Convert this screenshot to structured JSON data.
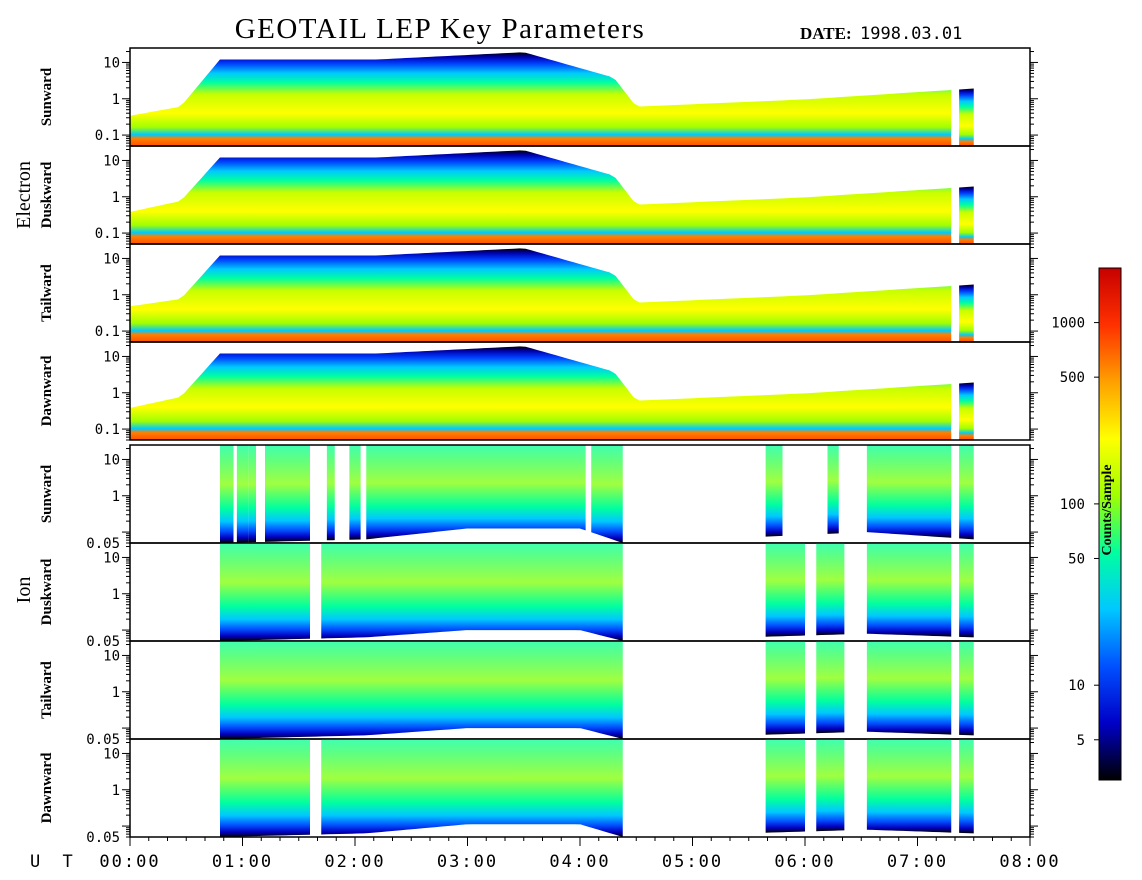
{
  "title": "GEOTAIL LEP Key Parameters",
  "date_label": "DATE:",
  "date_value": "1998.03.01",
  "time_axis_label": "U T",
  "groups": [
    "Electron",
    "Ion"
  ],
  "colorbar_label": "Counts/Sample",
  "chart_data": {
    "type": "heatmap",
    "title": "GEOTAIL LEP Key Parameters",
    "x_ticks": [
      "00:00",
      "01:00",
      "02:00",
      "03:00",
      "04:00",
      "05:00",
      "06:00",
      "07:00",
      "08:00"
    ],
    "x_range_hours": [
      0,
      8
    ],
    "colorbar": {
      "label": "Counts/Sample",
      "scale": "log",
      "ticks": [
        5,
        10,
        50,
        100,
        500,
        1000
      ],
      "tick_labels": [
        "5",
        "10",
        "50",
        "100",
        "500",
        "1000"
      ],
      "range": [
        3,
        2000
      ],
      "colors": [
        "#000000",
        "#0000c8",
        "#0050ff",
        "#00c8ff",
        "#00ffa0",
        "#a0ff00",
        "#ffff00",
        "#ffa000",
        "#ff3000",
        "#c80000"
      ]
    },
    "panels": [
      {
        "group": "Electron",
        "direction": "Sunward",
        "y_scale": "log",
        "y_range": [
          0.05,
          25
        ],
        "y_ticks": [
          0.1,
          1,
          10
        ],
        "y_tick_labels": [
          "0.1",
          "1",
          "10"
        ],
        "data_coverage_hours": [
          [
            0.0,
            7.3
          ],
          [
            7.37,
            7.5
          ]
        ],
        "band_ceiling_log": [
          [
            0.0,
            -0.55
          ],
          [
            0.45,
            -0.3
          ],
          [
            0.8,
            1.0
          ],
          [
            1.6,
            1.0
          ],
          [
            2.2,
            1.0
          ],
          [
            3.5,
            1.2
          ],
          [
            4.3,
            0.5
          ],
          [
            4.5,
            -0.3
          ],
          [
            6.0,
            -0.1
          ],
          [
            7.5,
            0.2
          ]
        ]
      },
      {
        "group": "Electron",
        "direction": "Duskward",
        "y_scale": "log",
        "y_range": [
          0.05,
          25
        ],
        "y_ticks": [
          0.1,
          1,
          10
        ],
        "y_tick_labels": [
          "0.1",
          "1",
          "10"
        ],
        "data_coverage_hours": [
          [
            0.0,
            7.3
          ],
          [
            7.37,
            7.5
          ]
        ],
        "band_ceiling_log": [
          [
            0.0,
            -0.5
          ],
          [
            0.45,
            -0.2
          ],
          [
            0.8,
            1.0
          ],
          [
            1.6,
            1.0
          ],
          [
            2.2,
            1.0
          ],
          [
            3.5,
            1.2
          ],
          [
            4.3,
            0.5
          ],
          [
            4.5,
            -0.3
          ],
          [
            6.0,
            -0.1
          ],
          [
            7.5,
            0.2
          ]
        ]
      },
      {
        "group": "Electron",
        "direction": "Tailward",
        "y_scale": "log",
        "y_range": [
          0.05,
          25
        ],
        "y_ticks": [
          0.1,
          1,
          10
        ],
        "y_tick_labels": [
          "0.1",
          "1",
          "10"
        ],
        "data_coverage_hours": [
          [
            0.0,
            7.3
          ],
          [
            7.37,
            7.5
          ]
        ],
        "band_ceiling_log": [
          [
            0.0,
            -0.4
          ],
          [
            0.45,
            -0.2
          ],
          [
            0.8,
            1.0
          ],
          [
            1.6,
            1.0
          ],
          [
            2.2,
            1.0
          ],
          [
            3.5,
            1.2
          ],
          [
            4.3,
            0.5
          ],
          [
            4.5,
            -0.3
          ],
          [
            6.0,
            -0.1
          ],
          [
            7.5,
            0.2
          ]
        ]
      },
      {
        "group": "Electron",
        "direction": "Dawnward",
        "y_scale": "log",
        "y_range": [
          0.05,
          25
        ],
        "y_ticks": [
          0.1,
          1,
          10
        ],
        "y_tick_labels": [
          "0.1",
          "1",
          "10"
        ],
        "data_coverage_hours": [
          [
            0.0,
            7.3
          ],
          [
            7.37,
            7.5
          ]
        ],
        "band_ceiling_log": [
          [
            0.0,
            -0.5
          ],
          [
            0.45,
            -0.2
          ],
          [
            0.8,
            1.0
          ],
          [
            1.6,
            1.0
          ],
          [
            2.2,
            1.0
          ],
          [
            3.5,
            1.2
          ],
          [
            4.3,
            0.5
          ],
          [
            4.5,
            -0.3
          ],
          [
            6.0,
            -0.1
          ],
          [
            7.5,
            0.2
          ]
        ]
      },
      {
        "group": "Ion",
        "direction": "Sunward",
        "y_scale": "log",
        "y_range": [
          0.05,
          25
        ],
        "y_ticks": [
          0.05,
          1,
          10
        ],
        "y_tick_labels": [
          "0.05",
          "1",
          "10"
        ],
        "data_coverage_hours": [
          [
            0.8,
            0.92
          ],
          [
            0.95,
            1.05
          ],
          [
            1.05,
            1.12
          ],
          [
            1.2,
            1.6
          ],
          [
            1.75,
            1.82
          ],
          [
            1.95,
            2.05
          ],
          [
            2.1,
            4.05
          ],
          [
            4.1,
            4.38
          ],
          [
            5.65,
            5.8
          ],
          [
            6.2,
            6.3
          ],
          [
            6.55,
            7.3
          ],
          [
            7.37,
            7.5
          ]
        ],
        "band_floor_log": [
          [
            0.8,
            -1.3
          ],
          [
            2.1,
            -1.2
          ],
          [
            3.0,
            -0.9
          ],
          [
            4.0,
            -0.9
          ],
          [
            4.38,
            -1.3
          ],
          [
            6.55,
            -1.0
          ],
          [
            7.5,
            -1.2
          ]
        ]
      },
      {
        "group": "Ion",
        "direction": "Duskward",
        "y_scale": "log",
        "y_range": [
          0.05,
          25
        ],
        "y_ticks": [
          0.05,
          1,
          10
        ],
        "y_tick_labels": [
          "0.05",
          "1",
          "10"
        ],
        "data_coverage_hours": [
          [
            0.8,
            1.6
          ],
          [
            1.7,
            4.38
          ],
          [
            5.65,
            6.0
          ],
          [
            6.1,
            6.35
          ],
          [
            6.55,
            7.3
          ],
          [
            7.37,
            7.5
          ]
        ],
        "band_floor_log": [
          [
            0.8,
            -1.3
          ],
          [
            2.1,
            -1.2
          ],
          [
            3.0,
            -1.0
          ],
          [
            4.0,
            -1.0
          ],
          [
            4.38,
            -1.3
          ],
          [
            6.55,
            -1.1
          ],
          [
            7.5,
            -1.2
          ]
        ]
      },
      {
        "group": "Ion",
        "direction": "Tailward",
        "y_scale": "log",
        "y_range": [
          0.05,
          25
        ],
        "y_ticks": [
          0.05,
          1,
          10
        ],
        "y_tick_labels": [
          "0.05",
          "1",
          "10"
        ],
        "data_coverage_hours": [
          [
            0.8,
            4.38
          ],
          [
            5.65,
            6.0
          ],
          [
            6.1,
            6.35
          ],
          [
            6.55,
            7.3
          ],
          [
            7.37,
            7.5
          ]
        ],
        "band_floor_log": [
          [
            0.8,
            -1.3
          ],
          [
            2.1,
            -1.2
          ],
          [
            3.0,
            -1.0
          ],
          [
            4.0,
            -1.0
          ],
          [
            4.38,
            -1.3
          ],
          [
            6.55,
            -1.1
          ],
          [
            7.5,
            -1.2
          ]
        ]
      },
      {
        "group": "Ion",
        "direction": "Dawnward",
        "y_scale": "log",
        "y_range": [
          0.05,
          25
        ],
        "y_ticks": [
          0.05,
          1,
          10
        ],
        "y_tick_labels": [
          "0.05",
          "1",
          "10"
        ],
        "data_coverage_hours": [
          [
            0.8,
            1.6
          ],
          [
            1.7,
            4.38
          ],
          [
            5.65,
            6.0
          ],
          [
            6.1,
            6.35
          ],
          [
            6.55,
            7.3
          ],
          [
            7.37,
            7.5
          ]
        ],
        "band_floor_log": [
          [
            0.8,
            -1.3
          ],
          [
            2.1,
            -1.2
          ],
          [
            3.0,
            -0.95
          ],
          [
            4.0,
            -0.95
          ],
          [
            4.38,
            -1.3
          ],
          [
            6.55,
            -1.1
          ],
          [
            7.5,
            -1.2
          ]
        ]
      }
    ]
  }
}
